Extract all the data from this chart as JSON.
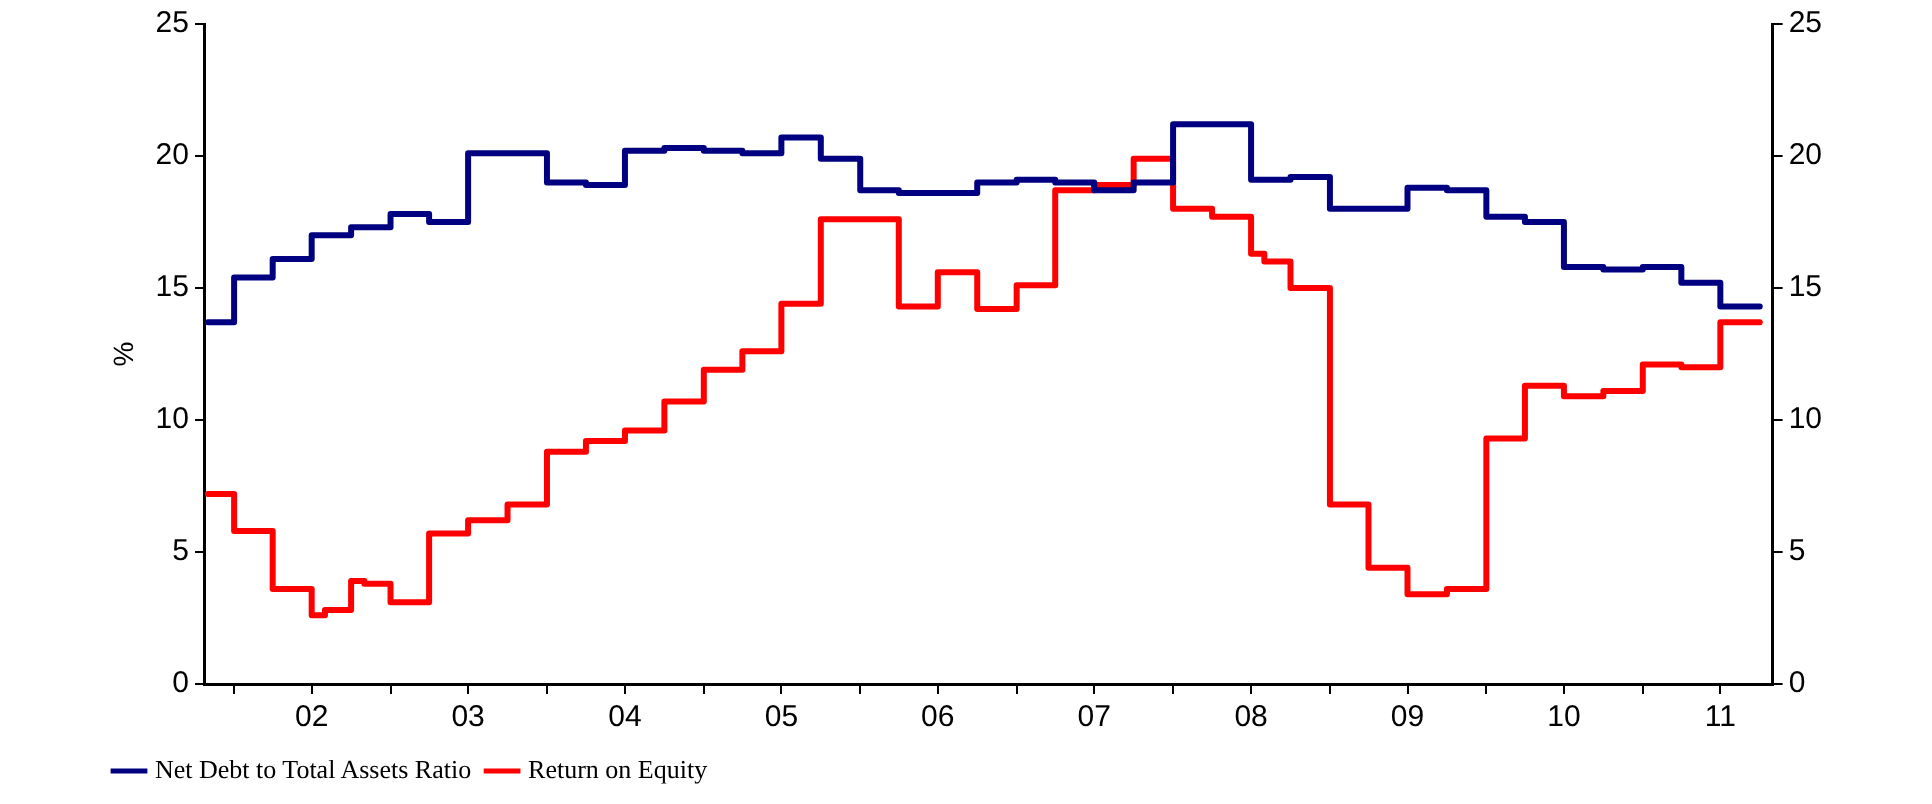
{
  "chart_data": {
    "type": "step",
    "ylabel": "%",
    "x": [
      "2001-11",
      "2002-01",
      "2002-04",
      "2002-07",
      "2002-10",
      "2003-01",
      "2003-04",
      "2003-07",
      "2004-01",
      "2004-04",
      "2004-07",
      "2004-10",
      "2005-01",
      "2005-04",
      "2005-07",
      "2005-10",
      "2006-01",
      "2006-04",
      "2006-10",
      "2007-01",
      "2007-04",
      "2007-07",
      "2007-10",
      "2008-01",
      "2008-07",
      "2008-10",
      "2009-01",
      "2009-04",
      "2009-07",
      "2009-10",
      "2010-01",
      "2010-04",
      "2010-07",
      "2010-10",
      "2011-01",
      "2011-04",
      "2011-07",
      "2011-10"
    ],
    "series": [
      {
        "name": "Net Debt to Total Assets Ratio",
        "color": "#000080",
        "values": [
          13.7,
          15.4,
          16.1,
          17.0,
          17.3,
          17.8,
          17.5,
          20.1,
          19.0,
          18.9,
          20.2,
          20.3,
          20.2,
          20.1,
          20.7,
          19.9,
          18.7,
          18.6,
          19.0,
          19.1,
          19.0,
          18.7,
          19.0,
          21.2,
          19.1,
          19.2,
          18.0,
          18.0,
          18.8,
          18.7,
          17.7,
          17.5,
          15.8,
          15.7,
          15.8,
          15.2,
          14.3,
          14.3
        ]
      },
      {
        "name": "Return on Equity",
        "color": "#ff0000",
        "x": [
          "2001-11",
          "2002-01",
          "2002-04",
          "2002-07",
          "2002-08",
          "2002-10",
          "2002-11",
          "2003-01",
          "2003-04",
          "2003-07",
          "2003-10",
          "2004-01",
          "2004-04",
          "2004-07",
          "2004-10",
          "2005-01",
          "2005-04",
          "2005-07",
          "2005-10",
          "2006-04",
          "2006-07",
          "2006-10",
          "2007-01",
          "2007-04",
          "2007-07",
          "2007-10",
          "2008-01",
          "2008-04",
          "2008-07",
          "2008-08",
          "2008-10",
          "2009-01",
          "2009-04",
          "2009-07",
          "2009-10",
          "2010-01",
          "2010-04",
          "2010-07",
          "2010-10",
          "2011-01",
          "2011-04",
          "2011-07",
          "2011-10"
        ],
        "values": [
          7.2,
          5.8,
          3.6,
          2.6,
          2.8,
          3.9,
          3.8,
          3.1,
          5.7,
          6.2,
          6.8,
          8.8,
          9.2,
          9.6,
          10.7,
          11.9,
          12.6,
          14.4,
          17.6,
          14.3,
          15.6,
          14.2,
          15.1,
          18.7,
          18.9,
          19.9,
          18.0,
          17.7,
          16.3,
          16.0,
          15.0,
          6.8,
          4.4,
          3.4,
          3.6,
          9.3,
          11.3,
          10.9,
          11.1,
          12.1,
          12.0,
          13.7,
          13.7
        ]
      }
    ],
    "xlim": [
      "2001-10-25",
      "2011-10-31"
    ],
    "xticks": [
      {
        "value": "2002-01-01",
        "label": null
      },
      {
        "value": "2002-07-01",
        "label": "02"
      },
      {
        "value": "2003-01-01",
        "label": null
      },
      {
        "value": "2003-07-01",
        "label": "03"
      },
      {
        "value": "2004-01-01",
        "label": null
      },
      {
        "value": "2004-07-01",
        "label": "04"
      },
      {
        "value": "2005-01-01",
        "label": null
      },
      {
        "value": "2005-07-01",
        "label": "05"
      },
      {
        "value": "2006-01-01",
        "label": null
      },
      {
        "value": "2006-07-01",
        "label": "06"
      },
      {
        "value": "2007-01-01",
        "label": null
      },
      {
        "value": "2007-07-01",
        "label": "07"
      },
      {
        "value": "2008-01-01",
        "label": null
      },
      {
        "value": "2008-07-01",
        "label": "08"
      },
      {
        "value": "2009-01-01",
        "label": null
      },
      {
        "value": "2009-07-01",
        "label": "09"
      },
      {
        "value": "2010-01-01",
        "label": null
      },
      {
        "value": "2010-07-01",
        "label": "10"
      },
      {
        "value": "2011-01-01",
        "label": null
      },
      {
        "value": "2011-07-01",
        "label": "11"
      }
    ],
    "ylim": [
      0,
      25
    ],
    "yticks": [
      0,
      5,
      10,
      15,
      20,
      25
    ],
    "y2lim": [
      0,
      25
    ],
    "y2ticks": [
      0,
      5,
      10,
      15,
      20,
      25
    ],
    "grid": false,
    "legend": "bottom",
    "marker": "none",
    "line_style": "solid"
  }
}
